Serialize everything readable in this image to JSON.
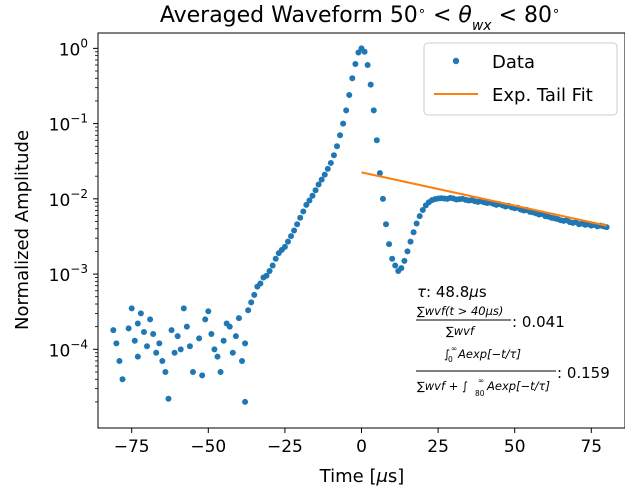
{
  "chart_data": {
    "type": "scatter",
    "title": "Averaged Waveform 50° < θ_wx < 80°",
    "xlabel": "Time [μs]",
    "ylabel": "Normalized Amplitude",
    "xlim": [
      -86,
      86
    ],
    "ylim": [
      9e-06,
      1.6
    ],
    "yscale": "log",
    "x_ticks": [
      -75,
      -50,
      -25,
      0,
      25,
      50,
      75
    ],
    "x_tick_labels": [
      "−75",
      "−50",
      "−25",
      "0",
      "25",
      "50",
      "75"
    ],
    "y_ticks": [
      0.0001,
      0.001,
      0.01,
      0.1,
      1
    ],
    "y_tick_labels": [
      {
        "base": "10",
        "exp": "−4"
      },
      {
        "base": "10",
        "exp": "−3"
      },
      {
        "base": "10",
        "exp": "−2"
      },
      {
        "base": "10",
        "exp": "−1"
      },
      {
        "base": "10",
        "exp": "0"
      }
    ],
    "grid": false,
    "legend_position": "top-right",
    "colors": {
      "data": "#1f77b4",
      "fit": "#ff7f0e"
    },
    "series": [
      {
        "name": "Data",
        "marker": "dot",
        "noise_region": [
          [
            -81,
            0.00018
          ],
          [
            -80,
            0.00012
          ],
          [
            -79,
            7e-05
          ],
          [
            -78,
            4e-05
          ],
          [
            -76,
            0.00019
          ],
          [
            -75,
            0.00035
          ],
          [
            -74,
            0.00013
          ],
          [
            -73,
            0.00022
          ],
          [
            -73,
            8e-05
          ],
          [
            -72,
            0.0003
          ],
          [
            -71,
            0.00017
          ],
          [
            -70,
            0.00011
          ],
          [
            -69,
            0.00025
          ],
          [
            -68,
            0.00016
          ],
          [
            -67,
            9e-05
          ],
          [
            -66,
            0.00012
          ],
          [
            -65,
            7e-05
          ],
          [
            -64,
            5e-05
          ],
          [
            -63,
            2.2e-05
          ],
          [
            -62,
            0.00018
          ],
          [
            -61,
            9e-05
          ],
          [
            -60,
            0.00015
          ],
          [
            -59,
            0.0001
          ],
          [
            -58,
            0.00035
          ],
          [
            -57,
            0.0002
          ],
          [
            -56,
            0.00011
          ],
          [
            -55,
            5e-05
          ],
          [
            -53,
            0.00014
          ],
          [
            -52,
            4.5e-05
          ],
          [
            -51,
            0.00025
          ],
          [
            -50,
            0.00032
          ],
          [
            -49,
            0.00016
          ],
          [
            -48,
            0.0001
          ],
          [
            -47,
            8e-05
          ],
          [
            -46,
            5e-05
          ],
          [
            -45,
            0.00013
          ],
          [
            -44,
            0.00022
          ],
          [
            -43,
            0.0002
          ],
          [
            -42,
            9e-05
          ],
          [
            -41,
            0.00015
          ],
          [
            -40,
            0.00026
          ],
          [
            -39,
            7e-05
          ],
          [
            -38,
            0.00012
          ],
          [
            -38,
            2e-05
          ],
          [
            -37,
            0.00033
          ],
          [
            -36,
            0.00042
          ],
          [
            -35,
            0.00053
          ],
          [
            -34,
            0.00068
          ]
        ],
        "points": [
          [
            -33,
            0.00075
          ],
          [
            -32,
            0.0009
          ],
          [
            -31,
            0.00095
          ],
          [
            -30,
            0.0011
          ],
          [
            -29,
            0.0013
          ],
          [
            -28,
            0.0016
          ],
          [
            -27,
            0.0019
          ],
          [
            -26,
            0.0021
          ],
          [
            -25,
            0.0023
          ],
          [
            -24,
            0.0027
          ],
          [
            -23,
            0.0032
          ],
          [
            -22,
            0.0038
          ],
          [
            -21,
            0.0046
          ],
          [
            -20,
            0.0056
          ],
          [
            -19,
            0.0068
          ],
          [
            -18,
            0.0083
          ],
          [
            -17,
            0.0095
          ],
          [
            -16,
            0.011
          ],
          [
            -15,
            0.013
          ],
          [
            -14,
            0.0155
          ],
          [
            -13,
            0.018
          ],
          [
            -12,
            0.021
          ],
          [
            -11,
            0.025
          ],
          [
            -10,
            0.03
          ],
          [
            -9,
            0.038
          ],
          [
            -8,
            0.05
          ],
          [
            -7,
            0.07
          ],
          [
            -6,
            0.1
          ],
          [
            -5,
            0.15
          ],
          [
            -4,
            0.24
          ],
          [
            -3,
            0.4
          ],
          [
            -2,
            0.62
          ],
          [
            -1,
            0.88
          ],
          [
            0,
            1.0
          ],
          [
            1,
            0.9
          ],
          [
            2,
            0.6
          ],
          [
            3,
            0.33
          ],
          [
            4,
            0.15
          ],
          [
            5,
            0.06
          ],
          [
            6,
            0.022
          ],
          [
            7,
            0.01
          ],
          [
            8,
            0.0046
          ],
          [
            9,
            0.0025
          ],
          [
            10,
            0.0016
          ],
          [
            11,
            0.0013
          ],
          [
            12,
            0.0011
          ],
          [
            13,
            0.0012
          ],
          [
            14,
            0.0015
          ],
          [
            15,
            0.002
          ],
          [
            16,
            0.0027
          ],
          [
            17,
            0.0036
          ],
          [
            18,
            0.0047
          ],
          [
            19,
            0.0059
          ],
          [
            20,
            0.0071
          ],
          [
            21,
            0.0082
          ],
          [
            22,
            0.009
          ],
          [
            23,
            0.0096
          ],
          [
            24,
            0.0099
          ],
          [
            25,
            0.0101
          ],
          [
            26,
            0.0102
          ],
          [
            27,
            0.0101
          ],
          [
            28,
            0.01
          ],
          [
            29,
            0.0103
          ],
          [
            30,
            0.0101
          ],
          [
            31,
            0.0098
          ],
          [
            32,
            0.0099
          ],
          [
            33,
            0.01
          ],
          [
            34,
            0.0097
          ],
          [
            35,
            0.0095
          ],
          [
            36,
            0.0096
          ],
          [
            37,
            0.0093
          ],
          [
            38,
            0.0091
          ],
          [
            39,
            0.0093
          ],
          [
            40,
            0.009
          ],
          [
            41,
            0.0088
          ],
          [
            42,
            0.0089
          ],
          [
            43,
            0.0086
          ],
          [
            44,
            0.0083
          ],
          [
            45,
            0.0085
          ],
          [
            46,
            0.0082
          ],
          [
            47,
            0.0079
          ],
          [
            48,
            0.0081
          ],
          [
            49,
            0.0077
          ],
          [
            50,
            0.0075
          ],
          [
            51,
            0.0076
          ],
          [
            52,
            0.0072
          ],
          [
            53,
            0.007
          ],
          [
            54,
            0.0071
          ],
          [
            55,
            0.0067
          ],
          [
            56,
            0.0066
          ],
          [
            57,
            0.0064
          ],
          [
            58,
            0.0062
          ],
          [
            59,
            0.0063
          ],
          [
            60,
            0.0059
          ],
          [
            61,
            0.0058
          ],
          [
            62,
            0.0056
          ],
          [
            63,
            0.0055
          ],
          [
            64,
            0.0054
          ],
          [
            65,
            0.0052
          ],
          [
            66,
            0.0051
          ],
          [
            67,
            0.0052
          ],
          [
            68,
            0.0049
          ],
          [
            69,
            0.0048
          ],
          [
            70,
            0.0049
          ],
          [
            71,
            0.0046
          ],
          [
            72,
            0.0047
          ],
          [
            73,
            0.0045
          ],
          [
            74,
            0.0046
          ],
          [
            75,
            0.0044
          ],
          [
            76,
            0.0045
          ],
          [
            77,
            0.0043
          ],
          [
            78,
            0.0044
          ],
          [
            79,
            0.0043
          ],
          [
            80,
            0.0042
          ]
        ]
      },
      {
        "name": "Exp. Tail Fit",
        "marker": "line",
        "x": [
          0,
          80
        ],
        "y": [
          0.0225,
          0.0044
        ]
      }
    ],
    "annotations": {
      "tau_label": "τ: 48.8μs",
      "ratio1_num": "∑wvf(t > 40μs)",
      "ratio1_den": "∑wvf",
      "ratio1_value": ": 0.041",
      "ratio2_num": "Aexp[−t/τ]",
      "ratio2_num_lower": "0",
      "ratio2_num_upper": "∞",
      "ratio2_den": "∑wvf + ∫",
      "ratio2_den_tail": "Aexp[−t/τ]",
      "ratio2_den_lower": "80",
      "ratio2_den_upper": "∞",
      "ratio2_value": ": 0.159"
    }
  }
}
